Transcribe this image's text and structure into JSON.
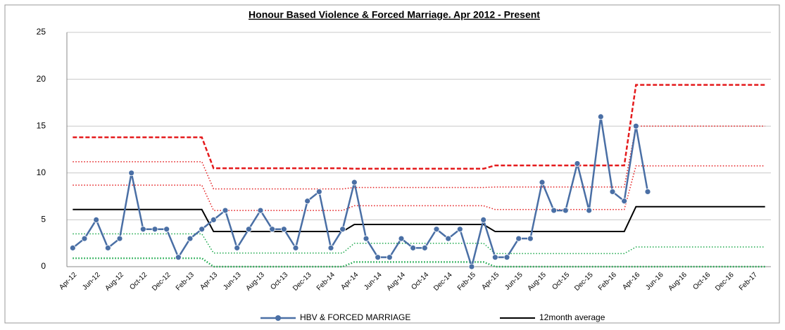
{
  "chart_data": {
    "type": "line",
    "title": "Honour Based Violence & Forced Marriage.  Apr 2012 - Present",
    "categories": [
      "Apr-12",
      null,
      "Jun-12",
      null,
      "Aug-12",
      null,
      "Oct-12",
      null,
      "Dec-12",
      null,
      "Feb-13",
      null,
      "Apr-13",
      null,
      "Jun-13",
      null,
      "Aug-13",
      null,
      "Oct-13",
      null,
      "Dec-13",
      null,
      "Feb-14",
      null,
      "Apr-14",
      null,
      "Jun-14",
      null,
      "Aug-14",
      null,
      "Oct-14",
      null,
      "Dec-14",
      null,
      "Feb-15",
      null,
      "Apr-15",
      null,
      "Jun-15",
      null,
      "Aug-15",
      null,
      "Oct-15",
      null,
      "Dec-15",
      null,
      "Feb-16",
      null,
      "Apr-16",
      null,
      "Jun-16",
      null,
      "Aug-16",
      null,
      "Oct-16",
      null,
      "Dec-16",
      null,
      "Feb-17",
      null
    ],
    "series": [
      {
        "color": "#e41a1c",
        "dash": "dashed",
        "width": 2.5,
        "values": [
          13.8,
          13.8,
          13.8,
          13.8,
          13.8,
          13.8,
          13.8,
          13.8,
          13.8,
          13.8,
          13.8,
          13.8,
          10.5,
          10.5,
          10.5,
          10.5,
          10.5,
          10.5,
          10.5,
          10.5,
          10.5,
          10.5,
          10.5,
          10.5,
          10.45,
          10.45,
          10.45,
          10.45,
          10.45,
          10.45,
          10.45,
          10.45,
          10.45,
          10.45,
          10.45,
          10.45,
          10.8,
          10.8,
          10.8,
          10.8,
          10.8,
          10.8,
          10.8,
          10.8,
          10.8,
          10.8,
          10.8,
          10.8,
          19.4,
          19.4,
          19.4,
          19.4,
          19.4,
          19.4,
          19.4,
          19.4,
          19.4,
          19.4,
          19.4,
          19.4
        ]
      },
      {
        "color": "#e41a1c",
        "dash": "dotted",
        "width": 1.5,
        "values": [
          11.2,
          11.2,
          11.2,
          11.2,
          11.2,
          11.2,
          11.2,
          11.2,
          11.2,
          11.2,
          11.2,
          11.2,
          8.3,
          8.3,
          8.3,
          8.3,
          8.3,
          8.3,
          8.3,
          8.3,
          8.3,
          8.3,
          8.3,
          8.3,
          8.45,
          8.45,
          8.45,
          8.45,
          8.45,
          8.45,
          8.45,
          8.45,
          8.45,
          8.45,
          8.45,
          8.45,
          8.5,
          8.5,
          8.5,
          8.5,
          8.5,
          8.5,
          8.5,
          8.5,
          8.5,
          8.5,
          8.5,
          8.5,
          15,
          15,
          15,
          15,
          15,
          15,
          15,
          15,
          15,
          15,
          15,
          15
        ]
      },
      {
        "color": "#e41a1c",
        "dash": "dotted",
        "width": 1.5,
        "values": [
          8.7,
          8.7,
          8.7,
          8.7,
          8.7,
          8.7,
          8.7,
          8.7,
          8.7,
          8.7,
          8.7,
          8.7,
          6,
          6,
          6,
          6,
          6,
          6,
          6,
          6,
          6,
          6,
          6,
          6,
          6.5,
          6.5,
          6.5,
          6.5,
          6.5,
          6.5,
          6.5,
          6.5,
          6.5,
          6.5,
          6.5,
          6.5,
          6.1,
          6.1,
          6.1,
          6.1,
          6.1,
          6.1,
          6.1,
          6.1,
          6.1,
          6.1,
          6.1,
          6.1,
          10.75,
          10.75,
          10.75,
          10.75,
          10.75,
          10.75,
          10.75,
          10.75,
          10.75,
          10.75,
          10.75,
          10.75
        ]
      },
      {
        "color": "#1aa84a",
        "dash": "dotted",
        "width": 1.5,
        "values": [
          3.5,
          3.5,
          3.5,
          3.5,
          3.5,
          3.5,
          3.5,
          3.5,
          3.5,
          3.5,
          3.5,
          3.5,
          1.45,
          1.45,
          1.45,
          1.45,
          1.45,
          1.45,
          1.45,
          1.45,
          1.45,
          1.45,
          1.45,
          1.45,
          2.5,
          2.5,
          2.5,
          2.5,
          2.5,
          2.5,
          2.5,
          2.5,
          2.5,
          2.5,
          2.5,
          2.5,
          1.4,
          1.4,
          1.4,
          1.4,
          1.4,
          1.4,
          1.4,
          1.4,
          1.4,
          1.4,
          1.4,
          1.4,
          2.1,
          2.1,
          2.1,
          2.1,
          2.1,
          2.1,
          2.1,
          2.1,
          2.1,
          2.1,
          2.1,
          2.1
        ]
      },
      {
        "color": "#1aa84a",
        "dash": "dotted",
        "width": 2.5,
        "values": [
          0.9,
          0.9,
          0.9,
          0.9,
          0.9,
          0.9,
          0.9,
          0.9,
          0.9,
          0.9,
          0.9,
          0.9,
          0,
          0,
          0,
          0,
          0,
          0,
          0,
          0,
          0,
          0,
          0,
          0,
          0.5,
          0.5,
          0.5,
          0.5,
          0.5,
          0.5,
          0.5,
          0.5,
          0.5,
          0.5,
          0.5,
          0.5,
          0,
          0,
          0,
          0,
          0,
          0,
          0,
          0,
          0,
          0,
          0,
          0,
          0,
          0,
          0,
          0,
          0,
          0,
          0,
          0,
          0,
          0,
          0,
          0
        ]
      },
      {
        "name": "12month average",
        "color": "#000000",
        "width": 2,
        "values": [
          6.1,
          6.1,
          6.1,
          6.1,
          6.1,
          6.1,
          6.1,
          6.1,
          6.1,
          6.1,
          6.1,
          6.1,
          3.75,
          3.75,
          3.75,
          3.75,
          3.75,
          3.75,
          3.75,
          3.75,
          3.75,
          3.75,
          3.75,
          3.75,
          4.5,
          4.5,
          4.5,
          4.5,
          4.5,
          4.5,
          4.5,
          4.5,
          4.5,
          4.5,
          4.5,
          4.5,
          3.75,
          3.75,
          3.75,
          3.75,
          3.75,
          3.75,
          3.75,
          3.75,
          3.75,
          3.75,
          3.75,
          3.75,
          6.4,
          6.4,
          6.4,
          6.4,
          6.4,
          6.4,
          6.4,
          6.4,
          6.4,
          6.4,
          6.4,
          6.4
        ]
      },
      {
        "name": "HBV & FORCED MARRIAGE",
        "color": "#4a6fa5",
        "width": 2.5,
        "markers": true,
        "values": [
          2,
          3,
          5,
          2,
          3,
          10,
          4,
          4,
          4,
          1,
          3,
          4,
          5,
          6,
          2,
          4,
          6,
          4,
          4,
          2,
          7,
          8,
          2,
          4,
          9,
          3,
          1,
          1,
          3,
          2,
          2,
          4,
          3,
          4,
          0,
          5,
          1,
          1,
          3,
          3,
          9,
          6,
          6,
          11,
          6,
          16,
          8,
          7,
          15,
          8,
          null,
          null,
          null,
          null,
          null,
          null,
          null,
          null,
          null,
          null
        ]
      }
    ],
    "legend_order": [
      6,
      5
    ],
    "ylim": [
      0,
      25
    ],
    "yticks": [
      0,
      5,
      10,
      15,
      20,
      25
    ],
    "grid": true
  }
}
